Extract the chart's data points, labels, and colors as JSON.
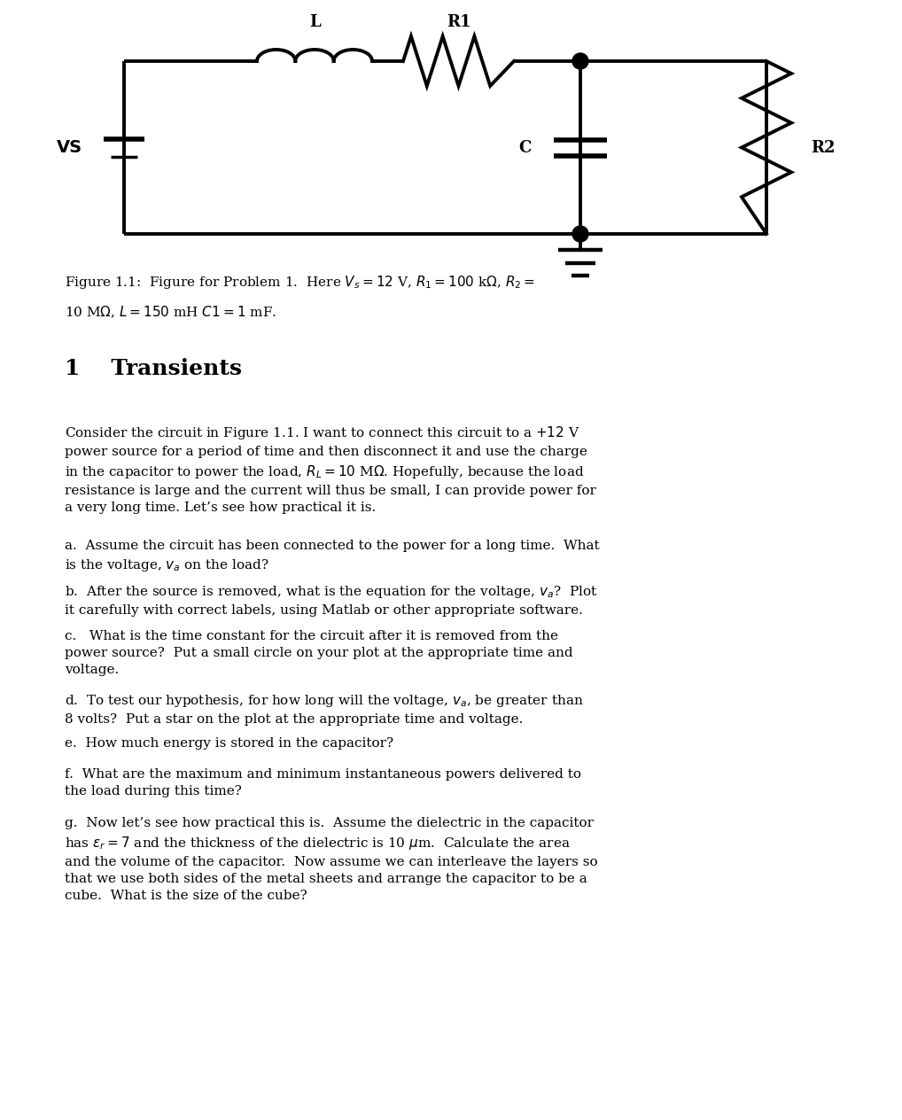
{
  "fig_width": 10.18,
  "fig_height": 12.64,
  "bg_color": "#ffffff",
  "lc": "#000000",
  "lw": 2.8,
  "vs_label": "VS",
  "l_label": "L",
  "r1_label": "R1",
  "c_label": "C",
  "r2_label": "R2"
}
